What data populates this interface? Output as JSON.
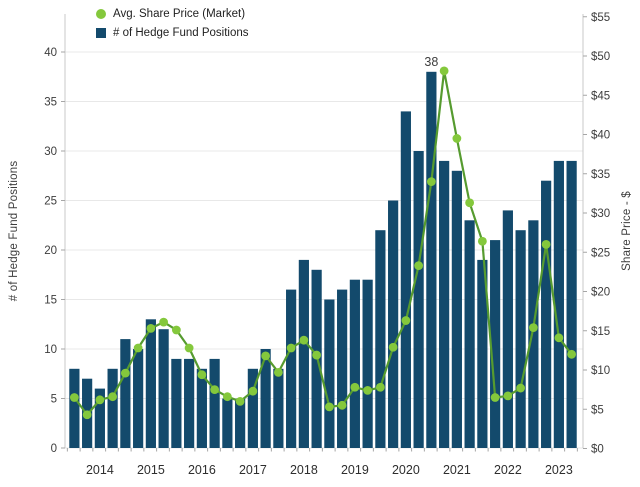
{
  "colors": {
    "bar": "#134a6c",
    "line": "#569b2f",
    "dot": "#84c83c",
    "gridline": "#e8e8e8",
    "spine": "#c9c9c9",
    "tick_mark": "#a6a6a6",
    "tick_text": "#3d3d3d",
    "year_text": "#2e2e2e",
    "annotation_text": "#3d3d3d",
    "background": "#ffffff"
  },
  "legend": {
    "items": [
      {
        "label": "Avg. Share Price (Market)",
        "swatch": "dot"
      },
      {
        "label": "# of Hedge Fund Positions",
        "swatch": "square"
      }
    ]
  },
  "left_axis": {
    "title": "# of Hedge Fund Positions",
    "ticks": [
      0,
      5,
      10,
      15,
      20,
      25,
      30,
      35,
      40
    ]
  },
  "right_axis": {
    "title": "Share Price - $",
    "ticks": [
      "$0",
      "$5",
      "$10",
      "$15",
      "$20",
      "$25",
      "$30",
      "$35",
      "$40",
      "$45",
      "$50",
      "$55"
    ]
  },
  "x_axis": {
    "year_labels": [
      "2014",
      "2015",
      "2016",
      "2017",
      "2018",
      "2019",
      "2020",
      "2021",
      "2022",
      "2023"
    ],
    "year_label_bar_index": [
      2,
      6,
      10,
      14,
      18,
      22,
      26,
      30,
      34,
      38
    ]
  },
  "annotation": {
    "text": "38",
    "bar_index": 28
  },
  "chart_data": {
    "type": "bar+line combo, quarterly",
    "n_points": 40,
    "series": [
      {
        "name": "# of Hedge Fund Positions",
        "type": "bar",
        "axis": "left",
        "values": [
          8,
          7,
          6,
          8,
          11,
          10,
          13,
          12,
          9,
          9,
          8,
          9,
          5,
          5,
          8,
          10,
          8,
          16,
          19,
          18,
          15,
          16,
          17,
          17,
          22,
          25,
          34,
          30,
          38,
          29,
          28,
          23,
          19,
          21,
          24,
          22,
          23,
          27,
          29,
          29
        ]
      },
      {
        "name": "Avg. Share Price (Market)",
        "type": "line",
        "axis": "right",
        "values": [
          6.5,
          4.3,
          6.2,
          6.6,
          9.6,
          12.8,
          15.3,
          16.1,
          15.1,
          12.8,
          9.4,
          7.5,
          6.6,
          6.0,
          7.3,
          11.8,
          9.7,
          12.8,
          13.8,
          11.9,
          5.3,
          5.5,
          7.8,
          7.4,
          7.8,
          12.9,
          16.3,
          23.3,
          34.0,
          48.1,
          39.5,
          31.3,
          26.4,
          6.5,
          6.7,
          7.7,
          15.4,
          26.0,
          14.1,
          12.0
        ]
      }
    ],
    "left_axis_range": [
      0,
      44
    ],
    "right_axis_range": [
      0,
      55
    ],
    "grid": "horizontal, left-axis ticks",
    "legend_position": "top-left inside plot",
    "max_bar_label": "38"
  }
}
